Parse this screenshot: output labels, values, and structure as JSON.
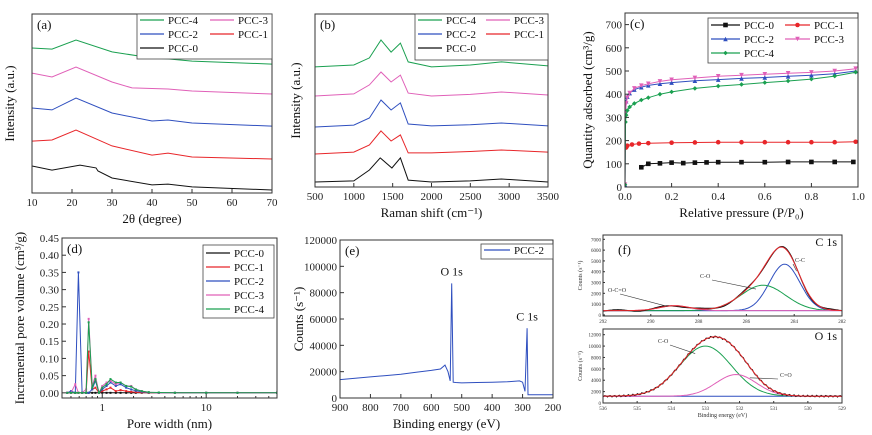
{
  "colors": {
    "PCC-0": "#111111",
    "PCC-1": "#e8262a",
    "PCC-2": "#2f4fbf",
    "PCC-3": "#e060b8",
    "PCC-4": "#1aa050"
  },
  "chart_data": [
    {
      "panel_label": "(a)",
      "type": "line",
      "title": "",
      "xlabel": "2θ (degree)",
      "ylabel": "Intensity (a.u.)",
      "xlim": [
        10,
        70
      ],
      "ylim": [
        0,
        100
      ],
      "xticks": [
        "10",
        "20",
        "30",
        "40",
        "50",
        "60",
        "70"
      ],
      "yticks": [],
      "legend": [
        "PCC-4",
        "PCC-3",
        "PCC-2",
        "PCC-1",
        "PCC-0"
      ],
      "series": [
        {
          "name": "PCC-4",
          "x": [
            10,
            15,
            21,
            30,
            40,
            44,
            50,
            70
          ],
          "y": [
            81,
            80.4,
            85.5,
            78.8,
            75.4,
            74.9,
            73.7,
            72
          ]
        },
        {
          "name": "PCC-3",
          "x": [
            10,
            15,
            21,
            30,
            35,
            44,
            50,
            70
          ],
          "y": [
            67,
            64.8,
            70.4,
            62,
            58.7,
            58.1,
            57,
            55.3
          ]
        },
        {
          "name": "PCC-2",
          "x": [
            10,
            15,
            21,
            30,
            40,
            44,
            50,
            70
          ],
          "y": [
            47.5,
            46.4,
            53.1,
            44.7,
            40.2,
            40.8,
            39.1,
            37.4
          ]
        },
        {
          "name": "PCC-1",
          "x": [
            10,
            15,
            21,
            30,
            40,
            44,
            50,
            70
          ],
          "y": [
            29,
            29.6,
            35.2,
            26.3,
            21.2,
            22.3,
            20.1,
            19
          ]
        },
        {
          "name": "PCC-0",
          "x": [
            10,
            15,
            22,
            26,
            26.5,
            30,
            40,
            44,
            50,
            70
          ],
          "y": [
            15.1,
            12.8,
            15.6,
            14,
            12.3,
            8.4,
            4.5,
            5,
            3.4,
            1.7
          ]
        }
      ]
    },
    {
      "panel_label": "(b)",
      "type": "line",
      "xlabel": "Raman shift (cm⁻¹)",
      "ylabel": "Intensity (a.u.)",
      "xlim": [
        500,
        3500
      ],
      "ylim": [
        0,
        100
      ],
      "xticks": [
        "500",
        "1000",
        "1500",
        "2000",
        "2500",
        "3000",
        "3500"
      ],
      "yticks": [],
      "legend": [
        "PCC-4",
        "PCC-3",
        "PCC-2",
        "PCC-1",
        "PCC-0"
      ],
      "series": [
        {
          "name": "PCC-4",
          "x": [
            500,
            1000,
            1200,
            1350,
            1480,
            1600,
            1700,
            2000,
            2500,
            2900,
            3500
          ],
          "y": [
            69.4,
            70.5,
            74.6,
            85,
            78,
            83.2,
            72.3,
            69.4,
            70.5,
            72.3,
            70
          ]
        },
        {
          "name": "PCC-3",
          "x": [
            500,
            1000,
            1200,
            1350,
            1480,
            1600,
            1700,
            2000,
            2500,
            2900,
            3500
          ],
          "y": [
            52.6,
            53.8,
            59,
            66.5,
            60.7,
            64.7,
            54.3,
            52.6,
            53.5,
            54.9,
            53.2
          ]
        },
        {
          "name": "PCC-2",
          "x": [
            500,
            1000,
            1200,
            1350,
            1480,
            1600,
            1700,
            2000,
            2500,
            2900,
            3500
          ],
          "y": [
            34.7,
            35.8,
            39.9,
            50.3,
            44.5,
            48.6,
            36.4,
            35.3,
            36,
            37,
            35.3
          ]
        },
        {
          "name": "PCC-1",
          "x": [
            500,
            1000,
            1200,
            1350,
            1480,
            1600,
            1700,
            2000,
            2500,
            2900,
            3500
          ],
          "y": [
            19.1,
            20.2,
            24.3,
            32.4,
            26.6,
            30.1,
            19.7,
            19.7,
            20.5,
            21.4,
            20.2
          ]
        },
        {
          "name": "PCC-0",
          "x": [
            500,
            1000,
            1200,
            1340,
            1490,
            1600,
            1700,
            2000,
            2500,
            2900,
            3500
          ],
          "y": [
            2.9,
            3.5,
            9.8,
            16.8,
            11,
            16.8,
            4,
            2.9,
            3.5,
            4.6,
            2.9
          ]
        }
      ]
    },
    {
      "panel_label": "(c)",
      "type": "line",
      "xlabel": "Relative pressure (P/P₀)",
      "ylabel": "Quantity adsorbed (cm³/g)",
      "xlim": [
        0,
        1
      ],
      "ylim": [
        0,
        750
      ],
      "xticks": [
        "0.0",
        "0.2",
        "0.4",
        "0.6",
        "0.8",
        "1.0"
      ],
      "yticks": [
        "0",
        "100",
        "200",
        "300",
        "400",
        "500",
        "600",
        "700"
      ],
      "legend": [
        "PCC-0",
        "PCC-1",
        "PCC-2",
        "PCC-3",
        "PCC-4"
      ],
      "series": [
        {
          "name": "PCC-0",
          "marker": "square",
          "x": [
            0.07,
            0.1,
            0.15,
            0.2,
            0.25,
            0.3,
            0.35,
            0.4,
            0.5,
            0.6,
            0.7,
            0.8,
            0.9,
            0.98
          ],
          "y": [
            85,
            100,
            102,
            105,
            103,
            105,
            106,
            107,
            107,
            107,
            108,
            108,
            108,
            108
          ]
        },
        {
          "name": "PCC-1",
          "marker": "circle",
          "x": [
            0.005,
            0.01,
            0.03,
            0.06,
            0.1,
            0.2,
            0.3,
            0.4,
            0.5,
            0.6,
            0.7,
            0.8,
            0.9,
            0.99
          ],
          "y": [
            170,
            178,
            183,
            187,
            189,
            191,
            192,
            193,
            193,
            193,
            193,
            193,
            193,
            195
          ]
        },
        {
          "name": "PCC-2",
          "marker": "triangle-up",
          "x": [
            0,
            0.002,
            0.005,
            0.01,
            0.02,
            0.04,
            0.07,
            0.1,
            0.15,
            0.2,
            0.3,
            0.4,
            0.5,
            0.6,
            0.7,
            0.8,
            0.9,
            0.99
          ],
          "y": [
            10,
            330,
            370,
            390,
            405,
            420,
            430,
            438,
            445,
            450,
            458,
            463,
            468,
            472,
            477,
            482,
            488,
            500
          ]
        },
        {
          "name": "PCC-3",
          "marker": "triangle-down",
          "x": [
            0,
            0.002,
            0.005,
            0.01,
            0.02,
            0.04,
            0.07,
            0.1,
            0.15,
            0.2,
            0.3,
            0.4,
            0.5,
            0.6,
            0.7,
            0.8,
            0.9,
            0.99
          ],
          "y": [
            10,
            320,
            360,
            385,
            405,
            425,
            437,
            445,
            455,
            462,
            470,
            477,
            482,
            486,
            490,
            494,
            500,
            510
          ]
        },
        {
          "name": "PCC-4",
          "marker": "diamond",
          "x": [
            0,
            0.002,
            0.005,
            0.01,
            0.02,
            0.04,
            0.07,
            0.1,
            0.15,
            0.2,
            0.3,
            0.4,
            0.5,
            0.6,
            0.7,
            0.8,
            0.9,
            0.99
          ],
          "y": [
            10,
            280,
            310,
            330,
            345,
            360,
            375,
            385,
            400,
            410,
            425,
            435,
            442,
            450,
            457,
            465,
            478,
            495
          ]
        }
      ]
    },
    {
      "panel_label": "(d)",
      "type": "line",
      "xscale": "log",
      "xlabel": "Pore width (nm)",
      "ylabel": "Incremental pore volume (cm³/g)",
      "xlim": [
        0.41,
        48
      ],
      "ylim": [
        -0.015,
        0.45
      ],
      "xticks": [
        "1",
        "10"
      ],
      "yticks": [
        "0.00",
        "0.05",
        "0.10",
        "0.15",
        "0.20",
        "0.25",
        "0.30",
        "0.35",
        "0.40",
        "0.45"
      ],
      "legend": [
        "PCC-0",
        "PCC-1",
        "PCC-2",
        "PCC-3",
        "PCC-4"
      ],
      "x": [
        0.46,
        0.5,
        0.55,
        0.59,
        0.64,
        0.7,
        0.74,
        0.8,
        0.86,
        0.93,
        1.0,
        1.1,
        1.2,
        1.35,
        1.5,
        1.7,
        1.9,
        2.1,
        2.4,
        2.8,
        3.5,
        5,
        10,
        20,
        48
      ],
      "series": [
        {
          "name": "PCC-0",
          "y": [
            0,
            0,
            0,
            0,
            0,
            0,
            0,
            0,
            0,
            0,
            0,
            0,
            0,
            0,
            0,
            0,
            0,
            0,
            0,
            0,
            0,
            0,
            0,
            0,
            0
          ]
        },
        {
          "name": "PCC-1",
          "y": [
            0,
            0,
            0,
            0,
            0,
            0,
            0.12,
            0.01,
            0.015,
            0,
            0.005,
            0.01,
            0.015,
            0.005,
            0.008,
            0.005,
            0.003,
            0.002,
            0.001,
            0,
            0,
            0,
            0,
            0,
            0
          ]
        },
        {
          "name": "PCC-2",
          "y": [
            0,
            0.005,
            0,
            0.35,
            0,
            0,
            0,
            0.01,
            0.035,
            0,
            0.01,
            0.02,
            0.03,
            0.02,
            0.025,
            0.015,
            0.01,
            0.006,
            0.003,
            0.001,
            0,
            0,
            0,
            0,
            0
          ]
        },
        {
          "name": "PCC-3",
          "y": [
            0,
            0,
            0.025,
            0,
            0,
            0.01,
            0.215,
            0.02,
            0.05,
            0,
            0.02,
            0.03,
            0.035,
            0.025,
            0.03,
            0.02,
            0.02,
            0.01,
            0.005,
            0.002,
            0,
            0,
            0,
            0,
            0
          ]
        },
        {
          "name": "PCC-4",
          "y": [
            0,
            0,
            0,
            0,
            0,
            0,
            0.205,
            0.015,
            0.04,
            0,
            0.015,
            0.025,
            0.04,
            0.03,
            0.03,
            0.02,
            0.018,
            0.01,
            0.005,
            0.002,
            0.001,
            0,
            0,
            0,
            0
          ]
        }
      ]
    },
    {
      "panel_label": "(e)",
      "type": "line",
      "xlabel": "Binding energy (eV)",
      "ylabel": "Counts (s⁻¹)",
      "xlim": [
        900,
        200
      ],
      "ylim": [
        0,
        120000
      ],
      "xticks": [
        "900",
        "800",
        "700",
        "600",
        "500",
        "400",
        "300",
        "200"
      ],
      "yticks": [
        "0",
        "20000",
        "40000",
        "60000",
        "80000",
        "100000",
        "120000"
      ],
      "legend": [
        "PCC-2"
      ],
      "annotations": [
        {
          "text": "O 1s",
          "x": 533,
          "y": 93000
        },
        {
          "text": "C 1s",
          "x": 285,
          "y": 59000
        }
      ],
      "series": [
        {
          "name": "PCC-2",
          "x": [
            900,
            850,
            800,
            750,
            700,
            650,
            600,
            570,
            555,
            545,
            538,
            533,
            528,
            520,
            500,
            450,
            400,
            350,
            310,
            300,
            292,
            285,
            282,
            270,
            200
          ],
          "y": [
            14000,
            15000,
            16000,
            17000,
            18000,
            19500,
            21000,
            22000,
            25000,
            20000,
            13000,
            87000,
            12000,
            11800,
            11500,
            11800,
            12000,
            12300,
            13000,
            12000,
            5000,
            53000,
            2500,
            2500,
            2500
          ]
        }
      ]
    },
    {
      "panel_label": "(f)",
      "type": "line",
      "subpanels": [
        {
          "title": "C 1s",
          "xlim": [
            292,
            282
          ],
          "ylim": [
            -100,
            7400
          ],
          "xticks": [
            "292",
            "290",
            "288",
            "286",
            "284",
            "282"
          ],
          "yticks": [
            "0",
            "1000",
            "2000",
            "3000",
            "4000",
            "5000",
            "6000",
            "7000"
          ],
          "ylabel": "Counts (s⁻¹)",
          "baseline": 400,
          "components": [
            {
              "name": "C-C",
              "center": 284.4,
              "height": 4300,
              "fwhm": 1.5
            },
            {
              "name": "C-O",
              "center": 285.3,
              "height": 2350,
              "fwhm": 2.2
            },
            {
              "name": "O-C=O",
              "center": 289.0,
              "height": 450,
              "fwhm": 1.5
            }
          ]
        },
        {
          "title": "O 1s",
          "xlim": [
            536,
            529
          ],
          "ylim": [
            0,
            13000
          ],
          "xticks": [
            "536",
            "535",
            "534",
            "533",
            "532",
            "531",
            "530",
            "529"
          ],
          "yticks": [
            "0",
            "2000",
            "4000",
            "6000",
            "8000",
            "10000",
            "12000"
          ],
          "ylabel": "Counts (s⁻¹)",
          "xlabel": "Binding energy (eV)",
          "baseline": 1200,
          "components": [
            {
              "name": "C-O",
              "center": 533.0,
              "height": 8800,
              "fwhm": 1.8
            },
            {
              "name": "C=O",
              "center": 532.1,
              "height": 3800,
              "fwhm": 1.4
            }
          ]
        }
      ]
    }
  ]
}
